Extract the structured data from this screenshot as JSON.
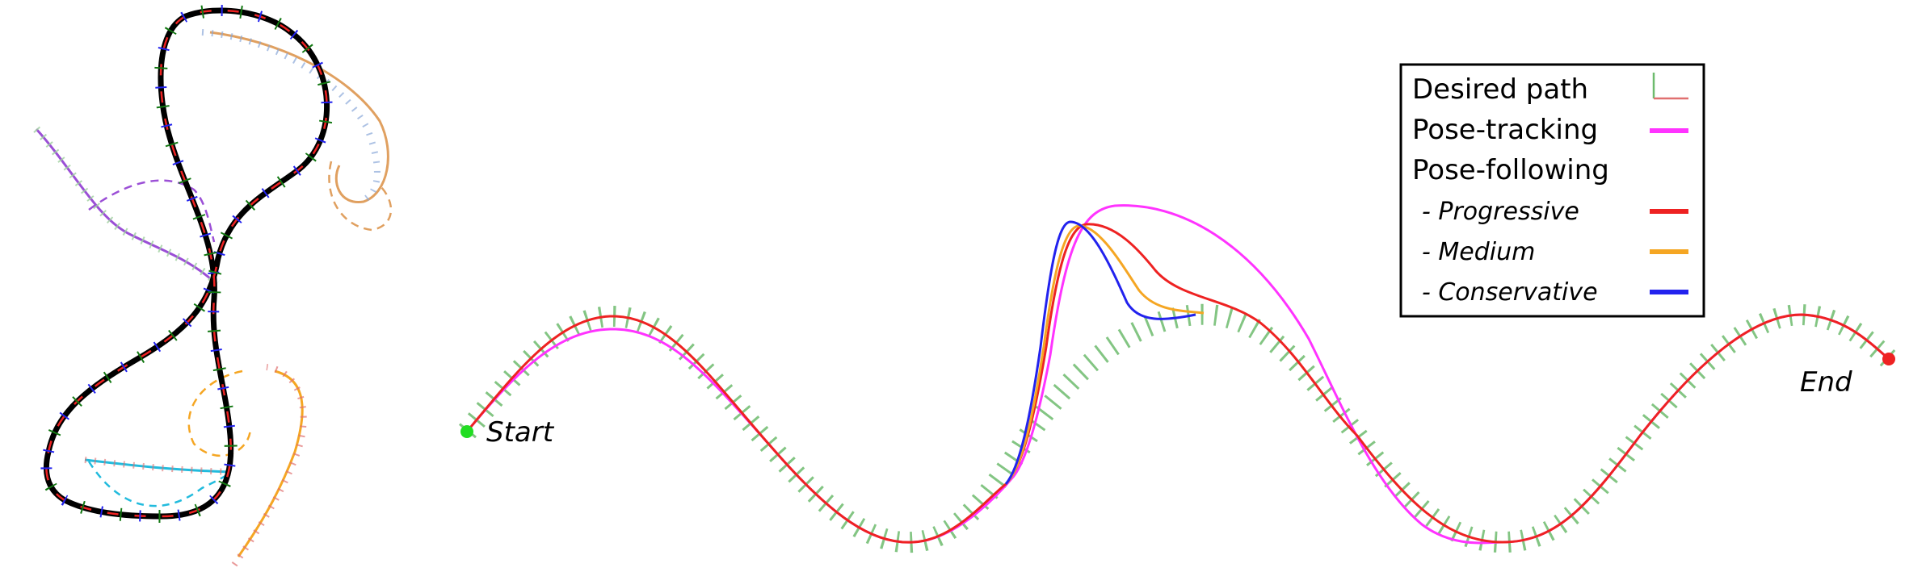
{
  "legend": {
    "items": [
      {
        "label": "Desired path",
        "italic": false,
        "swatch": "axes"
      },
      {
        "label": "Pose-tracking",
        "italic": false,
        "swatch": "line",
        "color": "#ff33ff"
      },
      {
        "label": "Pose-following",
        "italic": false,
        "swatch": "none"
      },
      {
        "label": " - Progressive",
        "italic": true,
        "swatch": "line",
        "color": "#ee2222"
      },
      {
        "label": " - Medium",
        "italic": true,
        "swatch": "line",
        "color": "#f5a623"
      },
      {
        "label": " - Conservative",
        "italic": true,
        "swatch": "line",
        "color": "#2222ee"
      }
    ]
  },
  "markers": {
    "start_label": "Start",
    "end_label": "End",
    "start_color": "#22dd22",
    "end_color": "#ee2222"
  },
  "colors": {
    "desired_ticks": "#6dbb6d",
    "pose_tracking": "#ff33ff",
    "progressive": "#ee2222",
    "medium": "#f5a623",
    "conservative": "#2222ee",
    "left_black_path": "#000000",
    "left_purple": "#9b4fd6",
    "left_orange": "#e0a060",
    "left_cyan": "#22bbdd",
    "left_yellow": "#f5a623"
  }
}
